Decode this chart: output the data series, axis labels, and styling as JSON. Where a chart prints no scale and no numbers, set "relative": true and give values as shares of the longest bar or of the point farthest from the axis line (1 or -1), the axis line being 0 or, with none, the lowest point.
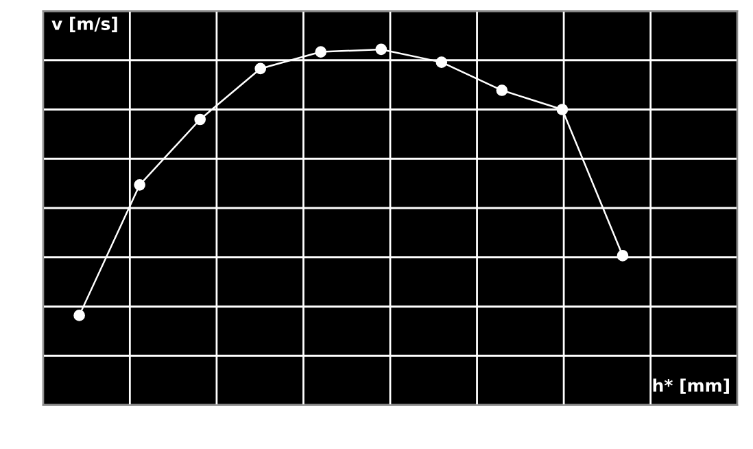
{
  "chart_data": {
    "type": "line",
    "xlabel": "h* [mm]",
    "ylabel": "v [m/s]",
    "categories": [
      null,
      null,
      null,
      null,
      null,
      null,
      null,
      null,
      null,
      null
    ],
    "series": [
      {
        "color": "#ffffff",
        "values": [
          0.252,
          0.619,
          0.803,
          0.946,
          0.993,
          1,
          0.964,
          0.885,
          0.831,
          0.42
        ]
      }
    ],
    "relative": true,
    "grid": true,
    "marker": "circle",
    "line_style": "solid"
  }
}
